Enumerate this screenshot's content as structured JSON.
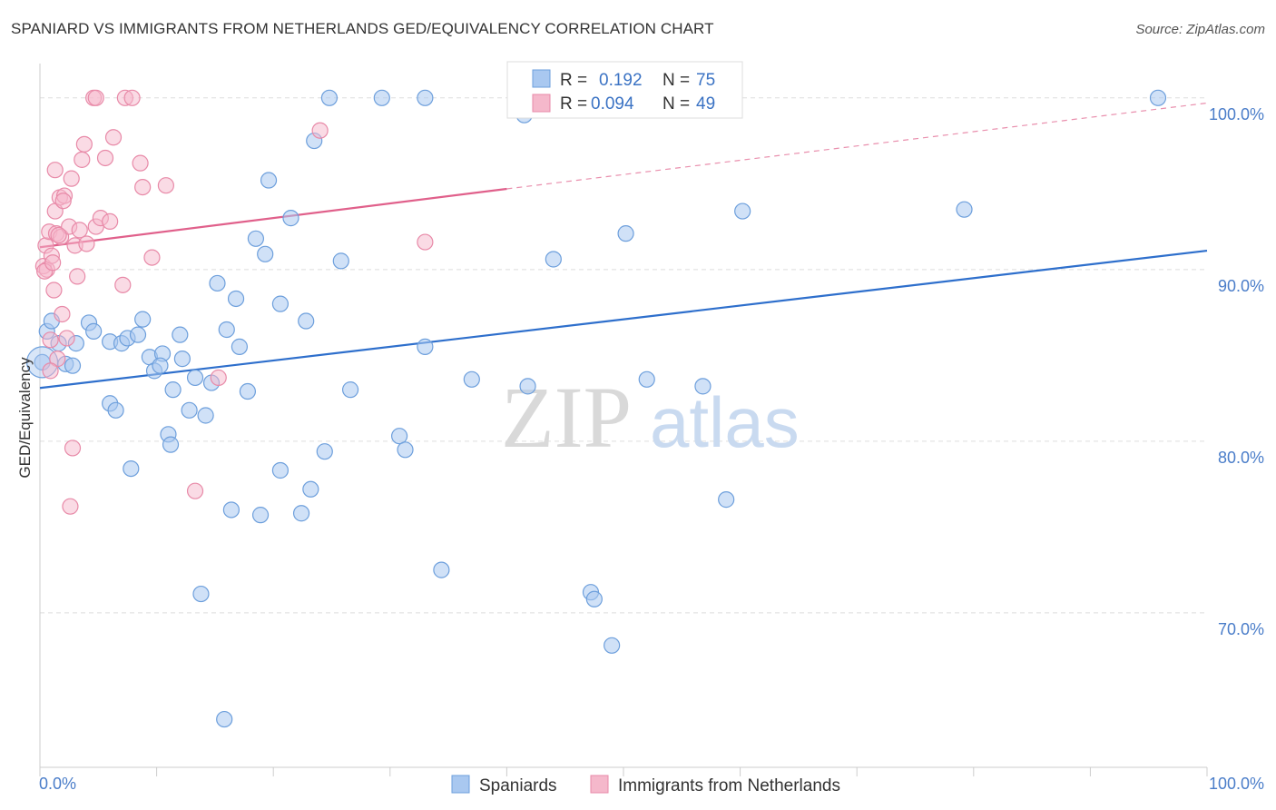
{
  "title": "SPANIARD VS IMMIGRANTS FROM NETHERLANDS GED/EQUIVALENCY CORRELATION CHART",
  "source": "Source: ZipAtlas.com",
  "watermark": {
    "zip": "ZIP",
    "atlas": "atlas"
  },
  "colors": {
    "blue_fill": "#a9c8f0",
    "blue_stroke": "#6d9fdc",
    "blue_line": "#2e6fcc",
    "pink_fill": "#f5b8cb",
    "pink_stroke": "#e88aa8",
    "pink_line": "#e0608b",
    "value_text": "#3b73c4",
    "grid": "#dddddd",
    "axis_label": "#4a7dc9"
  },
  "stats": {
    "spaniards": {
      "r_label": "R =",
      "r_value": "0.192",
      "n_label": "N =",
      "n_value": "75"
    },
    "netherlands": {
      "r_label": "R =",
      "r_value": "0.094",
      "n_label": "N =",
      "n_value": "49"
    }
  },
  "legend": {
    "series1": "Spaniards",
    "series2": "Immigrants from Netherlands"
  },
  "chart_data": {
    "type": "scatter",
    "title": "SPANIARD VS IMMIGRANTS FROM NETHERLANDS GED/EQUIVALENCY CORRELATION CHART",
    "xlabel": "",
    "ylabel": "GED/Equivalency",
    "xlim": [
      0,
      100
    ],
    "ylim": [
      61,
      102
    ],
    "x_tick_labels": [
      "0.0%",
      "100.0%"
    ],
    "y_ticks": [
      70,
      80,
      90,
      100
    ],
    "y_tick_labels": [
      "70.0%",
      "80.0%",
      "90.0%",
      "100.0%"
    ],
    "grid": true,
    "legend_position": "bottom",
    "series": [
      {
        "name": "Spaniards",
        "trend": {
          "x": [
            0,
            100
          ],
          "y": [
            83.1,
            91.1
          ]
        },
        "points": [
          [
            0.2,
            84.6
          ],
          [
            0.6,
            86.4
          ],
          [
            1.0,
            87.0
          ],
          [
            1.6,
            85.7
          ],
          [
            2.2,
            84.5
          ],
          [
            2.8,
            84.4
          ],
          [
            3.1,
            85.7
          ],
          [
            4.2,
            86.9
          ],
          [
            4.6,
            86.4
          ],
          [
            6.0,
            82.2
          ],
          [
            6.5,
            81.8
          ],
          [
            6.0,
            85.8
          ],
          [
            7.0,
            85.7
          ],
          [
            7.5,
            86.0
          ],
          [
            7.8,
            78.4
          ],
          [
            8.4,
            86.2
          ],
          [
            8.8,
            87.1
          ],
          [
            9.4,
            84.9
          ],
          [
            9.8,
            84.1
          ],
          [
            10.5,
            85.1
          ],
          [
            10.3,
            84.4
          ],
          [
            11.0,
            80.4
          ],
          [
            11.2,
            79.8
          ],
          [
            11.4,
            83.0
          ],
          [
            12.0,
            86.2
          ],
          [
            12.2,
            84.8
          ],
          [
            12.8,
            81.8
          ],
          [
            13.3,
            83.7
          ],
          [
            13.8,
            71.1
          ],
          [
            14.2,
            81.5
          ],
          [
            14.7,
            83.4
          ],
          [
            15.2,
            89.2
          ],
          [
            16.0,
            86.5
          ],
          [
            16.4,
            76.0
          ],
          [
            16.8,
            88.3
          ],
          [
            17.1,
            85.5
          ],
          [
            17.8,
            82.9
          ],
          [
            15.8,
            63.8
          ],
          [
            18.5,
            91.8
          ],
          [
            18.9,
            75.7
          ],
          [
            19.3,
            90.9
          ],
          [
            19.6,
            95.2
          ],
          [
            20.6,
            88.0
          ],
          [
            20.6,
            78.3
          ],
          [
            21.5,
            93.0
          ],
          [
            22.4,
            75.8
          ],
          [
            22.8,
            87.0
          ],
          [
            23.2,
            77.2
          ],
          [
            23.5,
            97.5
          ],
          [
            24.4,
            79.4
          ],
          [
            24.8,
            100.0
          ],
          [
            25.8,
            90.5
          ],
          [
            26.6,
            83.0
          ],
          [
            29.3,
            100.0
          ],
          [
            30.8,
            80.3
          ],
          [
            31.3,
            79.5
          ],
          [
            33.0,
            85.5
          ],
          [
            33.0,
            100.0
          ],
          [
            34.4,
            72.5
          ],
          [
            37.0,
            83.6
          ],
          [
            41.0,
            100.0
          ],
          [
            41.5,
            99.0
          ],
          [
            41.8,
            83.2
          ],
          [
            44.0,
            90.6
          ],
          [
            47.2,
            71.2
          ],
          [
            47.5,
            70.8
          ],
          [
            49.0,
            68.1
          ],
          [
            49.2,
            100.0
          ],
          [
            50.2,
            92.1
          ],
          [
            52.0,
            83.6
          ],
          [
            56.8,
            83.2
          ],
          [
            58.8,
            76.6
          ],
          [
            60.2,
            93.4
          ],
          [
            79.2,
            93.5
          ],
          [
            95.8,
            100.0
          ]
        ]
      },
      {
        "name": "Immigrants from Netherlands",
        "trend": {
          "x": [
            0,
            40
          ],
          "y": [
            91.3,
            94.7
          ],
          "dashed_x": [
            40,
            100
          ],
          "dashed_y": [
            94.7,
            99.7
          ]
        },
        "points": [
          [
            0.3,
            90.2
          ],
          [
            0.5,
            91.4
          ],
          [
            0.6,
            90.0
          ],
          [
            0.8,
            92.2
          ],
          [
            0.9,
            85.9
          ],
          [
            1.0,
            90.8
          ],
          [
            1.2,
            88.8
          ],
          [
            1.3,
            95.8
          ],
          [
            1.3,
            93.4
          ],
          [
            1.4,
            92.1
          ],
          [
            1.5,
            84.8
          ],
          [
            1.7,
            94.2
          ],
          [
            1.8,
            91.9
          ],
          [
            1.9,
            87.4
          ],
          [
            2.1,
            94.3
          ],
          [
            2.3,
            86.0
          ],
          [
            2.5,
            92.5
          ],
          [
            2.7,
            95.3
          ],
          [
            2.8,
            79.6
          ],
          [
            3.0,
            91.4
          ],
          [
            3.2,
            89.6
          ],
          [
            3.4,
            92.3
          ],
          [
            3.6,
            96.4
          ],
          [
            3.8,
            97.3
          ],
          [
            4.0,
            91.5
          ],
          [
            4.8,
            92.5
          ],
          [
            5.2,
            93.0
          ],
          [
            5.6,
            96.5
          ],
          [
            6.0,
            92.8
          ],
          [
            6.3,
            97.7
          ],
          [
            7.1,
            89.1
          ],
          [
            7.3,
            100.0
          ],
          [
            8.6,
            96.2
          ],
          [
            8.8,
            94.8
          ],
          [
            9.6,
            90.7
          ],
          [
            10.8,
            94.9
          ],
          [
            13.3,
            77.1
          ],
          [
            15.3,
            83.7
          ],
          [
            24.0,
            98.1
          ],
          [
            33.0,
            91.6
          ],
          [
            4.6,
            100.0
          ],
          [
            4.8,
            100.0
          ],
          [
            7.9,
            100.0
          ],
          [
            2.6,
            76.2
          ],
          [
            0.9,
            84.1
          ],
          [
            0.4,
            89.9
          ],
          [
            1.1,
            90.4
          ],
          [
            2.0,
            94.0
          ],
          [
            1.6,
            92.0
          ]
        ]
      }
    ]
  }
}
